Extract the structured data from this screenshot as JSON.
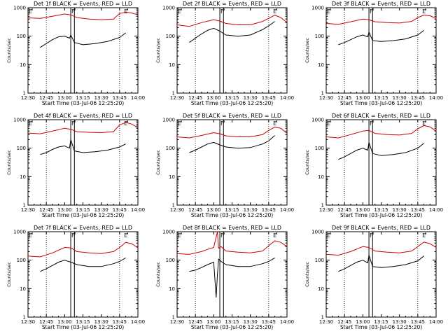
{
  "chart_data": {
    "type": "line",
    "yscale": "log",
    "ylim": [
      1,
      1000
    ],
    "xlim": [
      "12:30",
      "14:00"
    ],
    "x_tick_labels": [
      "12:30",
      "12:45",
      "13:00",
      "13:15",
      "13:30",
      "13:45",
      "14:00"
    ],
    "y_tick_labels": [
      "1",
      "10",
      "100",
      "1000"
    ],
    "xlabel": "Start Time (03-Jul-06 12:25:20)",
    "ylabel": "Counts/sec",
    "legend": "none",
    "colors": {
      "events": "#000000",
      "lld": "#cc0000"
    },
    "panels": [
      {
        "title": "Det 1f BLACK = Events, RED = LLD",
        "flags": [
          {
            "label": "E",
            "t": "12:30"
          },
          {
            "label": "F",
            "t": "13:05"
          },
          {
            "label": "E",
            "t": "13:48"
          }
        ],
        "markers": [
          "12:45",
          "13:05",
          "13:08",
          "13:45"
        ],
        "series": [
          {
            "role": "events",
            "x": [
              "12:40",
              "12:45",
              "12:50",
              "12:55",
              "13:00",
              "13:04",
              "13:05",
              "13:08",
              "13:15",
              "13:25",
              "13:35",
              "13:45",
              "13:50"
            ],
            "y": [
              40,
              55,
              75,
              95,
              100,
              85,
              110,
              60,
              50,
              55,
              65,
              90,
              130
            ]
          },
          {
            "role": "lld",
            "x": [
              "12:30",
              "12:40",
              "12:50",
              "13:00",
              "13:05",
              "13:10",
              "13:20",
              "13:30",
              "13:40",
              "13:45",
              "13:50",
              "13:55",
              "14:00"
            ],
            "y": [
              440,
              420,
              500,
              600,
              560,
              450,
              400,
              380,
              400,
              620,
              700,
              650,
              560
            ]
          }
        ]
      },
      {
        "title": "Det 2f BLACK = Events, RED = LLD",
        "flags": [
          {
            "label": "E",
            "t": "12:30"
          },
          {
            "label": "F",
            "t": "13:05"
          },
          {
            "label": "E",
            "t": "13:48"
          }
        ],
        "markers": [
          "12:45",
          "13:05",
          "13:08",
          "13:45"
        ],
        "series": [
          {
            "role": "events",
            "x": [
              "12:40",
              "12:45",
              "12:50",
              "12:55",
              "13:00",
              "13:05",
              "13:10",
              "13:20",
              "13:30",
              "13:40",
              "13:45",
              "13:50"
            ],
            "y": [
              60,
              85,
              120,
              160,
              190,
              150,
              110,
              100,
              110,
              170,
              230,
              330
            ]
          },
          {
            "role": "lld",
            "x": [
              "12:30",
              "12:40",
              "12:50",
              "13:00",
              "13:05",
              "13:10",
              "13:20",
              "13:30",
              "13:40",
              "13:45",
              "13:50",
              "13:55",
              "14:00"
            ],
            "y": [
              250,
              220,
              300,
              380,
              340,
              280,
              250,
              250,
              330,
              420,
              550,
              450,
              300
            ]
          }
        ]
      },
      {
        "title": "Det 3f BLACK = Events, RED = LLD",
        "flags": [
          {
            "label": "E",
            "t": "12:30"
          },
          {
            "label": "F",
            "t": "13:05"
          },
          {
            "label": "E",
            "t": "13:48"
          }
        ],
        "markers": [
          "12:45",
          "13:05",
          "13:08",
          "13:45"
        ],
        "series": [
          {
            "role": "events",
            "x": [
              "12:40",
              "12:45",
              "12:50",
              "12:55",
              "13:00",
              "13:04",
              "13:05",
              "13:08",
              "13:15",
              "13:25",
              "13:35",
              "13:45",
              "13:50"
            ],
            "y": [
              50,
              60,
              75,
              95,
              110,
              95,
              140,
              70,
              65,
              70,
              80,
              110,
              160
            ]
          },
          {
            "role": "lld",
            "x": [
              "12:30",
              "12:40",
              "12:50",
              "13:00",
              "13:05",
              "13:10",
              "13:20",
              "13:30",
              "13:40",
              "13:45",
              "13:50",
              "13:55",
              "14:00"
            ],
            "y": [
              280,
              260,
              320,
              400,
              380,
              320,
              300,
              290,
              330,
              450,
              550,
              520,
              420
            ]
          }
        ]
      },
      {
        "title": "Det 4f BLACK = Events, RED = LLD",
        "flags": [
          {
            "label": "E",
            "t": "12:30"
          },
          {
            "label": "F",
            "t": "13:05"
          },
          {
            "label": "E",
            "t": "13:48"
          }
        ],
        "markers": [
          "12:45",
          "13:05",
          "13:08",
          "13:45"
        ],
        "series": [
          {
            "role": "events",
            "x": [
              "12:40",
              "12:45",
              "12:50",
              "12:55",
              "13:00",
              "13:04",
              "13:05",
              "13:08",
              "13:15",
              "13:25",
              "13:35",
              "13:45",
              "13:50"
            ],
            "y": [
              60,
              70,
              90,
              110,
              120,
              100,
              200,
              80,
              70,
              75,
              85,
              110,
              140
            ]
          },
          {
            "role": "lld",
            "x": [
              "12:30",
              "12:40",
              "12:50",
              "13:00",
              "13:05",
              "13:10",
              "13:20",
              "13:30",
              "13:40",
              "13:45",
              "13:50",
              "13:55",
              "14:00"
            ],
            "y": [
              340,
              320,
              400,
              500,
              460,
              380,
              360,
              350,
              380,
              650,
              800,
              700,
              520
            ]
          }
        ]
      },
      {
        "title": "Det 5f BLACK = Events, RED = LLD",
        "flags": [
          {
            "label": "E",
            "t": "12:30"
          },
          {
            "label": "F",
            "t": "13:05"
          },
          {
            "label": "E",
            "t": "13:48"
          }
        ],
        "markers": [
          "12:45",
          "13:05",
          "13:08",
          "13:45"
        ],
        "series": [
          {
            "role": "events",
            "x": [
              "12:40",
              "12:45",
              "12:50",
              "12:55",
              "13:00",
              "13:05",
              "13:10",
              "13:20",
              "13:30",
              "13:40",
              "13:45",
              "13:50"
            ],
            "y": [
              70,
              85,
              110,
              140,
              160,
              130,
              110,
              100,
              105,
              140,
              180,
              280
            ]
          },
          {
            "role": "lld",
            "x": [
              "12:30",
              "12:40",
              "12:50",
              "13:00",
              "13:05",
              "13:10",
              "13:20",
              "13:30",
              "13:40",
              "13:45",
              "13:50",
              "13:55",
              "14:00"
            ],
            "y": [
              250,
              230,
              280,
              350,
              320,
              270,
              250,
              250,
              300,
              420,
              550,
              500,
              330
            ]
          }
        ]
      },
      {
        "title": "Det 6f BLACK = Events, RED = LLD",
        "flags": [
          {
            "label": "E",
            "t": "12:30"
          },
          {
            "label": "F",
            "t": "13:05"
          },
          {
            "label": "E",
            "t": "13:48"
          }
        ],
        "markers": [
          "12:45",
          "13:05",
          "13:08",
          "13:45"
        ],
        "series": [
          {
            "role": "events",
            "x": [
              "12:40",
              "12:45",
              "12:50",
              "12:55",
              "13:00",
              "13:04",
              "13:05",
              "13:08",
              "13:15",
              "13:25",
              "13:35",
              "13:45",
              "13:50"
            ],
            "y": [
              40,
              50,
              65,
              85,
              100,
              85,
              160,
              65,
              55,
              60,
              70,
              100,
              150
            ]
          },
          {
            "role": "lld",
            "x": [
              "12:30",
              "12:40",
              "12:50",
              "13:00",
              "13:05",
              "13:10",
              "13:20",
              "13:30",
              "13:40",
              "13:45",
              "13:50",
              "13:55",
              "14:00"
            ],
            "y": [
              250,
              230,
              300,
              400,
              420,
              330,
              300,
              290,
              330,
              480,
              620,
              560,
              400
            ]
          }
        ]
      },
      {
        "title": "Det 7f BLACK = Events, RED = LLD",
        "flags": [
          {
            "label": "E",
            "t": "12:30"
          },
          {
            "label": "F",
            "t": "13:05"
          },
          {
            "label": "E",
            "t": "13:48"
          }
        ],
        "markers": [
          "12:45",
          "13:05",
          "13:08",
          "13:45"
        ],
        "series": [
          {
            "role": "events",
            "x": [
              "12:40",
              "12:45",
              "12:50",
              "12:55",
              "13:00",
              "13:05",
              "13:10",
              "13:20",
              "13:30",
              "13:40",
              "13:45",
              "13:50"
            ],
            "y": [
              40,
              50,
              65,
              85,
              100,
              85,
              70,
              60,
              60,
              75,
              90,
              120
            ]
          },
          {
            "role": "lld",
            "x": [
              "12:30",
              "12:40",
              "12:50",
              "13:00",
              "13:05",
              "13:10",
              "13:20",
              "13:30",
              "13:40",
              "13:45",
              "13:50",
              "13:55",
              "14:00"
            ],
            "y": [
              140,
              130,
              180,
              280,
              270,
              200,
              180,
              170,
              200,
              280,
              420,
              380,
              270
            ]
          }
        ]
      },
      {
        "title": "Det 8f BLACK = Events, RED = LLD",
        "flags": [
          {
            "label": "E",
            "t": "12:30"
          },
          {
            "label": "F",
            "t": "13:05"
          },
          {
            "label": "E",
            "t": "13:48"
          }
        ],
        "markers": [
          "12:45",
          "13:05",
          "13:08",
          "13:45"
        ],
        "series": [
          {
            "role": "events",
            "x": [
              "12:40",
              "12:45",
              "12:50",
              "12:55",
              "13:00",
              "13:02",
              "13:03",
              "13:04",
              "13:06",
              "13:10",
              "13:20",
              "13:30",
              "13:40",
              "13:45",
              "13:50"
            ],
            "y": [
              40,
              45,
              55,
              70,
              85,
              5,
              30,
              110,
              90,
              70,
              60,
              60,
              75,
              90,
              120
            ]
          },
          {
            "role": "lld",
            "x": [
              "12:30",
              "12:40",
              "12:50",
              "12:55",
              "13:00",
              "13:03",
              "13:04",
              "13:06",
              "13:10",
              "13:20",
              "13:30",
              "13:40",
              "13:45",
              "13:50",
              "13:55",
              "14:00"
            ],
            "y": [
              170,
              160,
              200,
              240,
              280,
              1000,
              260,
              300,
              210,
              190,
              180,
              210,
              320,
              480,
              420,
              300
            ]
          }
        ]
      },
      {
        "title": "Det 9f BLACK = Events, RED = LLD",
        "flags": [
          {
            "label": "E",
            "t": "12:30"
          },
          {
            "label": "F",
            "t": "13:05"
          },
          {
            "label": "E",
            "t": "13:48"
          }
        ],
        "markers": [
          "12:45",
          "13:05",
          "13:08",
          "13:45"
        ],
        "series": [
          {
            "role": "events",
            "x": [
              "12:40",
              "12:45",
              "12:50",
              "12:55",
              "13:00",
              "13:04",
              "13:05",
              "13:08",
              "13:15",
              "13:25",
              "13:35",
              "13:45",
              "13:50"
            ],
            "y": [
              40,
              50,
              65,
              85,
              100,
              80,
              150,
              60,
              55,
              60,
              70,
              95,
              140
            ]
          },
          {
            "role": "lld",
            "x": [
              "12:30",
              "12:40",
              "12:50",
              "13:00",
              "13:05",
              "13:10",
              "13:20",
              "13:30",
              "13:40",
              "13:45",
              "13:50",
              "13:55",
              "14:00"
            ],
            "y": [
              160,
              150,
              200,
              300,
              280,
              210,
              190,
              180,
              210,
              300,
              430,
              380,
              280
            ]
          }
        ]
      }
    ]
  }
}
